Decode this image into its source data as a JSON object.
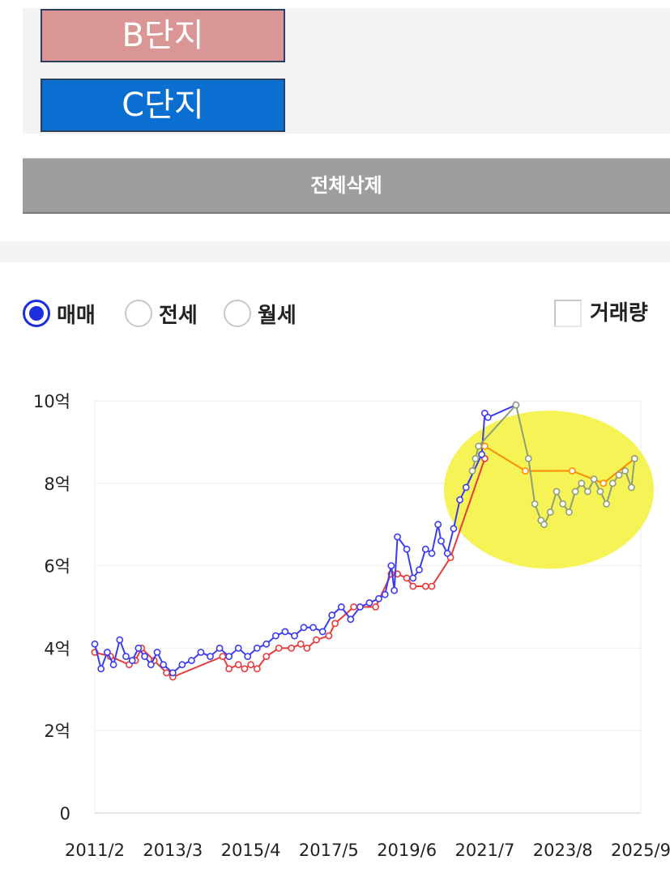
{
  "complexes": [
    {
      "label": "B단지",
      "color": "#d99694"
    },
    {
      "label": "C단지",
      "color": "#0b6fd1"
    }
  ],
  "delete_all_label": "전체삭제",
  "trade_types": [
    {
      "label": "매매",
      "selected": true
    },
    {
      "label": "전세",
      "selected": false
    },
    {
      "label": "월세",
      "selected": false
    }
  ],
  "volume_toggle": {
    "label": "거래량",
    "checked": false
  },
  "chart_data": {
    "type": "line",
    "title": "",
    "xlabel": "",
    "ylabel": "",
    "x_tick_labels": [
      "2011/2",
      "2013/3",
      "2015/4",
      "2017/5",
      "2019/6",
      "2021/7",
      "2023/8",
      "2025/9"
    ],
    "y_tick_labels": [
      "0",
      "2억",
      "4억",
      "6억",
      "8억",
      "10억"
    ],
    "xlim": [
      "2011-02",
      "2025-09"
    ],
    "ylim": [
      0,
      10
    ],
    "y_unit": "억",
    "grid": true,
    "highlight": {
      "shape": "ellipse",
      "color": "#f5f13a",
      "x_range": [
        "2020-09",
        "2025-09"
      ],
      "y_range": [
        6.2,
        9.8
      ]
    },
    "series": [
      {
        "color": "#e83a3a",
        "points": [
          {
            "x": "2011-02",
            "y": 3.9
          },
          {
            "x": "2011-07",
            "y": 3.8
          },
          {
            "x": "2012-01",
            "y": 3.6
          },
          {
            "x": "2012-03",
            "y": 3.7
          },
          {
            "x": "2012-05",
            "y": 4.0
          },
          {
            "x": "2012-09",
            "y": 3.7
          },
          {
            "x": "2013-01",
            "y": 3.4
          },
          {
            "x": "2013-03",
            "y": 3.3
          },
          {
            "x": "2014-07",
            "y": 3.8
          },
          {
            "x": "2014-09",
            "y": 3.5
          },
          {
            "x": "2014-12",
            "y": 3.6
          },
          {
            "x": "2015-02",
            "y": 3.5
          },
          {
            "x": "2015-04",
            "y": 3.6
          },
          {
            "x": "2015-06",
            "y": 3.5
          },
          {
            "x": "2015-09",
            "y": 3.8
          },
          {
            "x": "2016-01",
            "y": 4.0
          },
          {
            "x": "2016-05",
            "y": 4.0
          },
          {
            "x": "2016-08",
            "y": 4.1
          },
          {
            "x": "2016-10",
            "y": 4.0
          },
          {
            "x": "2017-01",
            "y": 4.2
          },
          {
            "x": "2017-05",
            "y": 4.3
          },
          {
            "x": "2017-07",
            "y": 4.6
          },
          {
            "x": "2018-01",
            "y": 5.0
          },
          {
            "x": "2018-08",
            "y": 5.0
          },
          {
            "x": "2019-01",
            "y": 5.8
          },
          {
            "x": "2019-03",
            "y": 5.8
          },
          {
            "x": "2019-06",
            "y": 5.7
          },
          {
            "x": "2019-08",
            "y": 5.5
          },
          {
            "x": "2019-12",
            "y": 5.5
          },
          {
            "x": "2020-02",
            "y": 5.5
          },
          {
            "x": "2020-08",
            "y": 6.2
          },
          {
            "x": "2021-07",
            "y": 8.6
          }
        ]
      },
      {
        "color": "#3b3bef",
        "points": [
          {
            "x": "2011-02",
            "y": 4.1
          },
          {
            "x": "2011-04",
            "y": 3.5
          },
          {
            "x": "2011-06",
            "y": 3.9
          },
          {
            "x": "2011-08",
            "y": 3.6
          },
          {
            "x": "2011-10",
            "y": 4.2
          },
          {
            "x": "2011-12",
            "y": 3.8
          },
          {
            "x": "2012-02",
            "y": 3.7
          },
          {
            "x": "2012-04",
            "y": 4.0
          },
          {
            "x": "2012-06",
            "y": 3.8
          },
          {
            "x": "2012-08",
            "y": 3.6
          },
          {
            "x": "2012-10",
            "y": 3.9
          },
          {
            "x": "2012-12",
            "y": 3.6
          },
          {
            "x": "2013-03",
            "y": 3.4
          },
          {
            "x": "2013-06",
            "y": 3.6
          },
          {
            "x": "2013-09",
            "y": 3.7
          },
          {
            "x": "2013-12",
            "y": 3.9
          },
          {
            "x": "2014-03",
            "y": 3.8
          },
          {
            "x": "2014-06",
            "y": 4.0
          },
          {
            "x": "2014-09",
            "y": 3.8
          },
          {
            "x": "2014-12",
            "y": 4.0
          },
          {
            "x": "2015-03",
            "y": 3.8
          },
          {
            "x": "2015-06",
            "y": 4.0
          },
          {
            "x": "2015-09",
            "y": 4.1
          },
          {
            "x": "2015-12",
            "y": 4.3
          },
          {
            "x": "2016-03",
            "y": 4.4
          },
          {
            "x": "2016-06",
            "y": 4.3
          },
          {
            "x": "2016-09",
            "y": 4.5
          },
          {
            "x": "2016-12",
            "y": 4.5
          },
          {
            "x": "2017-03",
            "y": 4.4
          },
          {
            "x": "2017-06",
            "y": 4.8
          },
          {
            "x": "2017-09",
            "y": 5.0
          },
          {
            "x": "2017-12",
            "y": 4.7
          },
          {
            "x": "2018-03",
            "y": 5.0
          },
          {
            "x": "2018-06",
            "y": 5.1
          },
          {
            "x": "2018-09",
            "y": 5.2
          },
          {
            "x": "2018-11",
            "y": 5.3
          },
          {
            "x": "2019-01",
            "y": 6.0
          },
          {
            "x": "2019-02",
            "y": 5.4
          },
          {
            "x": "2019-03",
            "y": 6.7
          },
          {
            "x": "2019-06",
            "y": 6.4
          },
          {
            "x": "2019-08",
            "y": 5.7
          },
          {
            "x": "2019-10",
            "y": 5.9
          },
          {
            "x": "2019-12",
            "y": 6.4
          },
          {
            "x": "2020-02",
            "y": 6.3
          },
          {
            "x": "2020-04",
            "y": 7.0
          },
          {
            "x": "2020-05",
            "y": 6.6
          },
          {
            "x": "2020-07",
            "y": 6.3
          },
          {
            "x": "2020-09",
            "y": 6.9
          },
          {
            "x": "2020-11",
            "y": 7.6
          },
          {
            "x": "2021-01",
            "y": 7.9
          },
          {
            "x": "2021-06",
            "y": 8.7
          },
          {
            "x": "2021-07",
            "y": 9.7
          },
          {
            "x": "2021-08",
            "y": 9.6
          },
          {
            "x": "2022-05",
            "y": 9.9
          }
        ]
      },
      {
        "color": "#ff8c00",
        "points": [
          {
            "x": "2021-07",
            "y": 8.9
          },
          {
            "x": "2022-08",
            "y": 8.3
          },
          {
            "x": "2023-11",
            "y": 8.3
          },
          {
            "x": "2024-09",
            "y": 8.0
          },
          {
            "x": "2025-07",
            "y": 8.6
          }
        ]
      },
      {
        "color": "#8f9e7a",
        "points": [
          {
            "x": "2021-03",
            "y": 8.3
          },
          {
            "x": "2021-04",
            "y": 8.6
          },
          {
            "x": "2021-05",
            "y": 8.9
          },
          {
            "x": "2022-05",
            "y": 9.9
          },
          {
            "x": "2022-09",
            "y": 8.6
          },
          {
            "x": "2022-11",
            "y": 7.5
          },
          {
            "x": "2023-01",
            "y": 7.1
          },
          {
            "x": "2023-02",
            "y": 7.0
          },
          {
            "x": "2023-04",
            "y": 7.3
          },
          {
            "x": "2023-06",
            "y": 7.8
          },
          {
            "x": "2023-08",
            "y": 7.5
          },
          {
            "x": "2023-10",
            "y": 7.3
          },
          {
            "x": "2023-12",
            "y": 7.8
          },
          {
            "x": "2024-02",
            "y": 8.0
          },
          {
            "x": "2024-04",
            "y": 7.8
          },
          {
            "x": "2024-06",
            "y": 8.1
          },
          {
            "x": "2024-08",
            "y": 7.8
          },
          {
            "x": "2024-10",
            "y": 7.5
          },
          {
            "x": "2024-12",
            "y": 8.0
          },
          {
            "x": "2025-02",
            "y": 8.2
          },
          {
            "x": "2025-04",
            "y": 8.3
          },
          {
            "x": "2025-06",
            "y": 7.9
          },
          {
            "x": "2025-07",
            "y": 8.6
          }
        ]
      }
    ]
  }
}
